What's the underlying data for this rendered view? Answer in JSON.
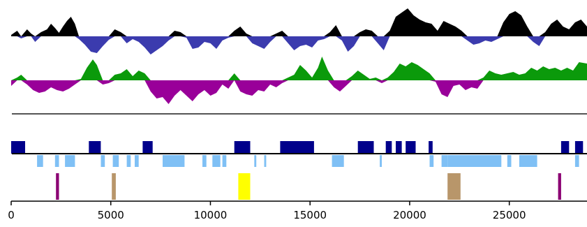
{
  "axis": {
    "min": 0,
    "max": 28900,
    "ticks": [
      {
        "value": 0,
        "label": "0"
      },
      {
        "value": 5000,
        "label": "5000"
      },
      {
        "value": 10000,
        "label": "10000"
      },
      {
        "value": 15000,
        "label": "15000"
      },
      {
        "value": 20000,
        "label": "20000"
      },
      {
        "value": 25000,
        "label": "25000"
      }
    ]
  },
  "colors": {
    "skew1_positive": "#000000",
    "skew1_negative": "#3b3bae",
    "skew2_positive": "#0b9a0b",
    "skew2_negative": "#990099",
    "divider": "#555555",
    "forward_features": "#00008b",
    "reverse_features": "#7fc0f5",
    "feature_purple": "#8b0073",
    "feature_tan": "#b8966a",
    "feature_yellow": "#ffff00"
  },
  "tracks": {
    "skew1": {
      "profile": [
        [
          0,
          2
        ],
        [
          300,
          8
        ],
        [
          500,
          -3
        ],
        [
          800,
          10
        ],
        [
          1000,
          4
        ],
        [
          1200,
          -8
        ],
        [
          1500,
          6
        ],
        [
          1800,
          10
        ],
        [
          2000,
          18
        ],
        [
          2200,
          12
        ],
        [
          2400,
          5
        ],
        [
          2600,
          14
        ],
        [
          2800,
          22
        ],
        [
          3000,
          28
        ],
        [
          3200,
          18
        ],
        [
          3400,
          -4
        ],
        [
          3700,
          -12
        ],
        [
          4000,
          -22
        ],
        [
          4300,
          -24
        ],
        [
          4600,
          -14
        ],
        [
          4900,
          -5
        ],
        [
          5200,
          10
        ],
        [
          5500,
          6
        ],
        [
          5800,
          -10
        ],
        [
          6100,
          -4
        ],
        [
          6400,
          -8
        ],
        [
          6700,
          -16
        ],
        [
          7000,
          -26
        ],
        [
          7300,
          -20
        ],
        [
          7600,
          -14
        ],
        [
          7900,
          -6
        ],
        [
          8200,
          8
        ],
        [
          8500,
          6
        ],
        [
          8800,
          -2
        ],
        [
          9100,
          -18
        ],
        [
          9400,
          -16
        ],
        [
          9700,
          -8
        ],
        [
          10000,
          -10
        ],
        [
          10300,
          -18
        ],
        [
          10600,
          -6
        ],
        [
          10900,
          -2
        ],
        [
          11200,
          8
        ],
        [
          11500,
          14
        ],
        [
          11800,
          4
        ],
        [
          12100,
          -10
        ],
        [
          12400,
          -14
        ],
        [
          12700,
          -18
        ],
        [
          13000,
          -8
        ],
        [
          13300,
          4
        ],
        [
          13600,
          8
        ],
        [
          13900,
          -10
        ],
        [
          14200,
          -20
        ],
        [
          14500,
          -14
        ],
        [
          14800,
          -12
        ],
        [
          15100,
          -16
        ],
        [
          15400,
          -6
        ],
        [
          15700,
          -4
        ],
        [
          16000,
          6
        ],
        [
          16300,
          16
        ],
        [
          16600,
          -6
        ],
        [
          16900,
          -22
        ],
        [
          17200,
          -14
        ],
        [
          17500,
          6
        ],
        [
          17800,
          10
        ],
        [
          18100,
          8
        ],
        [
          18400,
          -10
        ],
        [
          18700,
          -20
        ],
        [
          19000,
          8
        ],
        [
          19300,
          28
        ],
        [
          19600,
          34
        ],
        [
          19900,
          40
        ],
        [
          20200,
          30
        ],
        [
          20500,
          24
        ],
        [
          20800,
          20
        ],
        [
          21100,
          18
        ],
        [
          21400,
          8
        ],
        [
          21700,
          22
        ],
        [
          22000,
          18
        ],
        [
          22300,
          14
        ],
        [
          22600,
          8
        ],
        [
          22900,
          -6
        ],
        [
          23200,
          -12
        ],
        [
          23500,
          -10
        ],
        [
          23800,
          -6
        ],
        [
          24100,
          -8
        ],
        [
          24400,
          -4
        ],
        [
          24700,
          20
        ],
        [
          25000,
          32
        ],
        [
          25300,
          36
        ],
        [
          25600,
          30
        ],
        [
          25900,
          14
        ],
        [
          26200,
          -8
        ],
        [
          26500,
          -14
        ],
        [
          26800,
          6
        ],
        [
          27100,
          18
        ],
        [
          27400,
          24
        ],
        [
          27700,
          14
        ],
        [
          28000,
          10
        ],
        [
          28300,
          20
        ],
        [
          28600,
          24
        ],
        [
          28900,
          14
        ]
      ]
    },
    "skew2": {
      "profile": [
        [
          0,
          -8
        ],
        [
          300,
          4
        ],
        [
          500,
          8
        ],
        [
          800,
          -6
        ],
        [
          1100,
          -14
        ],
        [
          1400,
          -18
        ],
        [
          1700,
          -16
        ],
        [
          2000,
          -10
        ],
        [
          2300,
          -14
        ],
        [
          2600,
          -16
        ],
        [
          2900,
          -12
        ],
        [
          3200,
          -6
        ],
        [
          3500,
          2
        ],
        [
          3800,
          18
        ],
        [
          4100,
          30
        ],
        [
          4300,
          22
        ],
        [
          4600,
          -6
        ],
        [
          4900,
          -4
        ],
        [
          5200,
          8
        ],
        [
          5500,
          10
        ],
        [
          5800,
          16
        ],
        [
          6100,
          6
        ],
        [
          6400,
          14
        ],
        [
          6700,
          10
        ],
        [
          7000,
          -16
        ],
        [
          7300,
          -26
        ],
        [
          7600,
          -24
        ],
        [
          7900,
          -34
        ],
        [
          8200,
          -22
        ],
        [
          8500,
          -14
        ],
        [
          8800,
          -22
        ],
        [
          9100,
          -30
        ],
        [
          9400,
          -20
        ],
        [
          9700,
          -14
        ],
        [
          10000,
          -22
        ],
        [
          10300,
          -18
        ],
        [
          10600,
          -6
        ],
        [
          10900,
          -12
        ],
        [
          11200,
          10
        ],
        [
          11500,
          -16
        ],
        [
          11800,
          -20
        ],
        [
          12100,
          -22
        ],
        [
          12400,
          -14
        ],
        [
          12700,
          -16
        ],
        [
          13000,
          -6
        ],
        [
          13300,
          -10
        ],
        [
          13600,
          -4
        ],
        [
          13900,
          4
        ],
        [
          14200,
          8
        ],
        [
          14500,
          22
        ],
        [
          14800,
          14
        ],
        [
          15100,
          4
        ],
        [
          15400,
          18
        ],
        [
          15600,
          34
        ],
        [
          15900,
          14
        ],
        [
          16200,
          -10
        ],
        [
          16500,
          -16
        ],
        [
          16800,
          -8
        ],
        [
          17100,
          6
        ],
        [
          17400,
          14
        ],
        [
          17700,
          8
        ],
        [
          18000,
          2
        ],
        [
          18300,
          4
        ],
        [
          18600,
          -4
        ],
        [
          18900,
          4
        ],
        [
          19200,
          12
        ],
        [
          19500,
          24
        ],
        [
          19800,
          20
        ],
        [
          20100,
          26
        ],
        [
          20400,
          22
        ],
        [
          20700,
          16
        ],
        [
          21000,
          10
        ],
        [
          21300,
          -2
        ],
        [
          21600,
          -20
        ],
        [
          21900,
          -24
        ],
        [
          22200,
          -8
        ],
        [
          22500,
          -6
        ],
        [
          22800,
          -14
        ],
        [
          23100,
          -10
        ],
        [
          23400,
          -12
        ],
        [
          23700,
          4
        ],
        [
          24000,
          14
        ],
        [
          24300,
          10
        ],
        [
          24600,
          8
        ],
        [
          24900,
          10
        ],
        [
          25200,
          12
        ],
        [
          25500,
          8
        ],
        [
          25800,
          10
        ],
        [
          26100,
          18
        ],
        [
          26400,
          14
        ],
        [
          26700,
          20
        ],
        [
          27000,
          16
        ],
        [
          27300,
          18
        ],
        [
          27600,
          14
        ],
        [
          27900,
          18
        ],
        [
          28200,
          14
        ],
        [
          28500,
          26
        ],
        [
          28900,
          24
        ]
      ]
    },
    "forward_features": [
      [
        0,
        700
      ],
      [
        3900,
        4500
      ],
      [
        6600,
        7100
      ],
      [
        11200,
        12000
      ],
      [
        13500,
        15200
      ],
      [
        17400,
        18200
      ],
      [
        18800,
        19100
      ],
      [
        19300,
        19600
      ],
      [
        19800,
        20300
      ],
      [
        20950,
        21150
      ],
      [
        27600,
        28000
      ],
      [
        28300,
        28700
      ]
    ],
    "reverse_features": [
      [
        1300,
        1600
      ],
      [
        2200,
        2400
      ],
      [
        2700,
        3200
      ],
      [
        4500,
        4700
      ],
      [
        5100,
        5400
      ],
      [
        5800,
        6000
      ],
      [
        6200,
        6400
      ],
      [
        7600,
        8700
      ],
      [
        9600,
        9800
      ],
      [
        10100,
        10500
      ],
      [
        10600,
        10800
      ],
      [
        12200,
        12300
      ],
      [
        12700,
        12800
      ],
      [
        16100,
        16700
      ],
      [
        18500,
        18600
      ],
      [
        21000,
        21200
      ],
      [
        21600,
        21900
      ],
      [
        21900,
        24600
      ],
      [
        24900,
        25100
      ],
      [
        25500,
        26400
      ],
      [
        28300,
        28500
      ]
    ],
    "annotated_features": [
      {
        "start": 2250,
        "end": 2400,
        "color": "purple"
      },
      {
        "start": 5050,
        "end": 5250,
        "color": "tan"
      },
      {
        "start": 11400,
        "end": 12000,
        "color": "yellow"
      },
      {
        "start": 21900,
        "end": 22550,
        "color": "tan"
      },
      {
        "start": 27450,
        "end": 27600,
        "color": "purple"
      }
    ]
  }
}
